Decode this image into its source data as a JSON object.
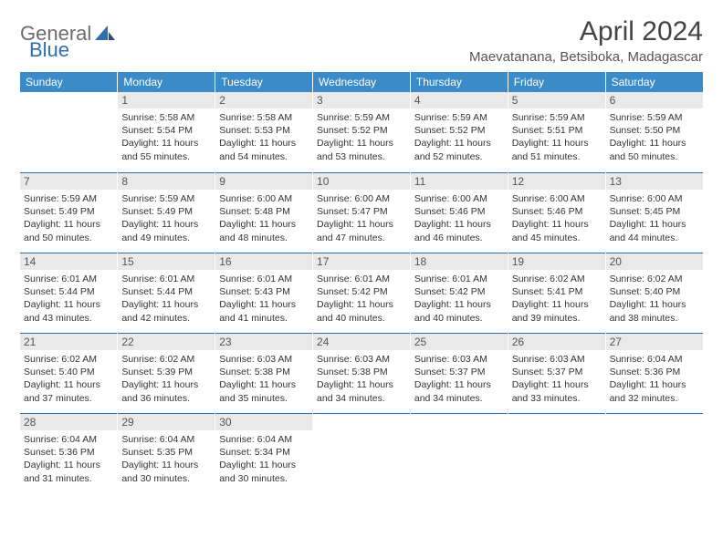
{
  "logo": {
    "word1": "General",
    "word2": "Blue"
  },
  "title": "April 2024",
  "location": "Maevatanana, Betsiboka, Madagascar",
  "colors": {
    "header_bg": "#3b8bc9",
    "header_fg": "#ffffff",
    "daynum_bg": "#e9e9e9",
    "daynum_border": "#2f6fb0",
    "text": "#333333",
    "logo_gray": "#6c6c6c",
    "logo_blue": "#2f6fb0"
  },
  "typography": {
    "title_fontsize": 30,
    "location_fontsize": 15,
    "header_fontsize": 12,
    "body_fontsize": 10.5
  },
  "day_headers": [
    "Sunday",
    "Monday",
    "Tuesday",
    "Wednesday",
    "Thursday",
    "Friday",
    "Saturday"
  ],
  "weeks": [
    [
      {
        "n": "",
        "lines": []
      },
      {
        "n": "1",
        "lines": [
          "Sunrise: 5:58 AM",
          "Sunset: 5:54 PM",
          "Daylight: 11 hours and 55 minutes."
        ]
      },
      {
        "n": "2",
        "lines": [
          "Sunrise: 5:58 AM",
          "Sunset: 5:53 PM",
          "Daylight: 11 hours and 54 minutes."
        ]
      },
      {
        "n": "3",
        "lines": [
          "Sunrise: 5:59 AM",
          "Sunset: 5:52 PM",
          "Daylight: 11 hours and 53 minutes."
        ]
      },
      {
        "n": "4",
        "lines": [
          "Sunrise: 5:59 AM",
          "Sunset: 5:52 PM",
          "Daylight: 11 hours and 52 minutes."
        ]
      },
      {
        "n": "5",
        "lines": [
          "Sunrise: 5:59 AM",
          "Sunset: 5:51 PM",
          "Daylight: 11 hours and 51 minutes."
        ]
      },
      {
        "n": "6",
        "lines": [
          "Sunrise: 5:59 AM",
          "Sunset: 5:50 PM",
          "Daylight: 11 hours and 50 minutes."
        ]
      }
    ],
    [
      {
        "n": "7",
        "lines": [
          "Sunrise: 5:59 AM",
          "Sunset: 5:49 PM",
          "Daylight: 11 hours and 50 minutes."
        ]
      },
      {
        "n": "8",
        "lines": [
          "Sunrise: 5:59 AM",
          "Sunset: 5:49 PM",
          "Daylight: 11 hours and 49 minutes."
        ]
      },
      {
        "n": "9",
        "lines": [
          "Sunrise: 6:00 AM",
          "Sunset: 5:48 PM",
          "Daylight: 11 hours and 48 minutes."
        ]
      },
      {
        "n": "10",
        "lines": [
          "Sunrise: 6:00 AM",
          "Sunset: 5:47 PM",
          "Daylight: 11 hours and 47 minutes."
        ]
      },
      {
        "n": "11",
        "lines": [
          "Sunrise: 6:00 AM",
          "Sunset: 5:46 PM",
          "Daylight: 11 hours and 46 minutes."
        ]
      },
      {
        "n": "12",
        "lines": [
          "Sunrise: 6:00 AM",
          "Sunset: 5:46 PM",
          "Daylight: 11 hours and 45 minutes."
        ]
      },
      {
        "n": "13",
        "lines": [
          "Sunrise: 6:00 AM",
          "Sunset: 5:45 PM",
          "Daylight: 11 hours and 44 minutes."
        ]
      }
    ],
    [
      {
        "n": "14",
        "lines": [
          "Sunrise: 6:01 AM",
          "Sunset: 5:44 PM",
          "Daylight: 11 hours and 43 minutes."
        ]
      },
      {
        "n": "15",
        "lines": [
          "Sunrise: 6:01 AM",
          "Sunset: 5:44 PM",
          "Daylight: 11 hours and 42 minutes."
        ]
      },
      {
        "n": "16",
        "lines": [
          "Sunrise: 6:01 AM",
          "Sunset: 5:43 PM",
          "Daylight: 11 hours and 41 minutes."
        ]
      },
      {
        "n": "17",
        "lines": [
          "Sunrise: 6:01 AM",
          "Sunset: 5:42 PM",
          "Daylight: 11 hours and 40 minutes."
        ]
      },
      {
        "n": "18",
        "lines": [
          "Sunrise: 6:01 AM",
          "Sunset: 5:42 PM",
          "Daylight: 11 hours and 40 minutes."
        ]
      },
      {
        "n": "19",
        "lines": [
          "Sunrise: 6:02 AM",
          "Sunset: 5:41 PM",
          "Daylight: 11 hours and 39 minutes."
        ]
      },
      {
        "n": "20",
        "lines": [
          "Sunrise: 6:02 AM",
          "Sunset: 5:40 PM",
          "Daylight: 11 hours and 38 minutes."
        ]
      }
    ],
    [
      {
        "n": "21",
        "lines": [
          "Sunrise: 6:02 AM",
          "Sunset: 5:40 PM",
          "Daylight: 11 hours and 37 minutes."
        ]
      },
      {
        "n": "22",
        "lines": [
          "Sunrise: 6:02 AM",
          "Sunset: 5:39 PM",
          "Daylight: 11 hours and 36 minutes."
        ]
      },
      {
        "n": "23",
        "lines": [
          "Sunrise: 6:03 AM",
          "Sunset: 5:38 PM",
          "Daylight: 11 hours and 35 minutes."
        ]
      },
      {
        "n": "24",
        "lines": [
          "Sunrise: 6:03 AM",
          "Sunset: 5:38 PM",
          "Daylight: 11 hours and 34 minutes."
        ]
      },
      {
        "n": "25",
        "lines": [
          "Sunrise: 6:03 AM",
          "Sunset: 5:37 PM",
          "Daylight: 11 hours and 34 minutes."
        ]
      },
      {
        "n": "26",
        "lines": [
          "Sunrise: 6:03 AM",
          "Sunset: 5:37 PM",
          "Daylight: 11 hours and 33 minutes."
        ]
      },
      {
        "n": "27",
        "lines": [
          "Sunrise: 6:04 AM",
          "Sunset: 5:36 PM",
          "Daylight: 11 hours and 32 minutes."
        ]
      }
    ],
    [
      {
        "n": "28",
        "lines": [
          "Sunrise: 6:04 AM",
          "Sunset: 5:36 PM",
          "Daylight: 11 hours and 31 minutes."
        ]
      },
      {
        "n": "29",
        "lines": [
          "Sunrise: 6:04 AM",
          "Sunset: 5:35 PM",
          "Daylight: 11 hours and 30 minutes."
        ]
      },
      {
        "n": "30",
        "lines": [
          "Sunrise: 6:04 AM",
          "Sunset: 5:34 PM",
          "Daylight: 11 hours and 30 minutes."
        ]
      },
      {
        "n": "",
        "lines": []
      },
      {
        "n": "",
        "lines": []
      },
      {
        "n": "",
        "lines": []
      },
      {
        "n": "",
        "lines": []
      }
    ]
  ]
}
